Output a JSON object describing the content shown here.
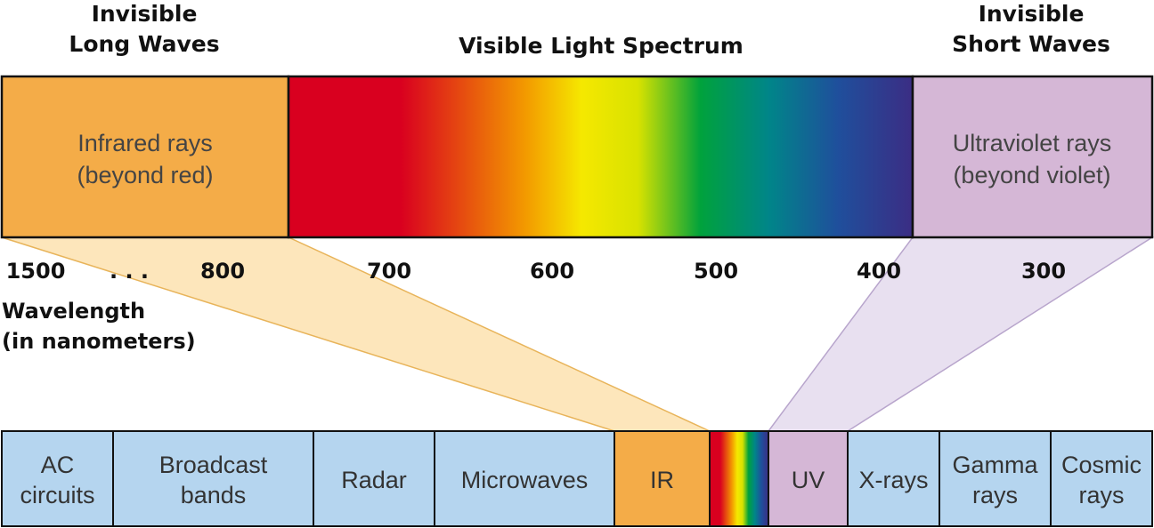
{
  "header": {
    "left": [
      "Invisible",
      "Long Waves"
    ],
    "center": "Visible Light Spectrum",
    "right": [
      "Invisible",
      "Short Waves"
    ]
  },
  "boxes": {
    "infrared": [
      "Infrared rays",
      "(beyond red)"
    ],
    "ultraviolet": [
      "Ultraviolet rays",
      "(beyond violet)"
    ]
  },
  "scale": [
    "1500",
    ". . .",
    "800",
    "700",
    "600",
    "500",
    "400",
    "300"
  ],
  "axis_label": [
    "Wavelength",
    "(in nanometers)"
  ],
  "bands": [
    [
      "AC",
      "circuits"
    ],
    [
      "Broadcast",
      "bands"
    ],
    [
      "Radar"
    ],
    [
      "Microwaves"
    ],
    [
      "IR"
    ],
    [],
    [
      "UV"
    ],
    [
      "X-rays"
    ],
    [
      "Gamma",
      "rays"
    ],
    [
      "Cosmic",
      "rays"
    ]
  ]
}
